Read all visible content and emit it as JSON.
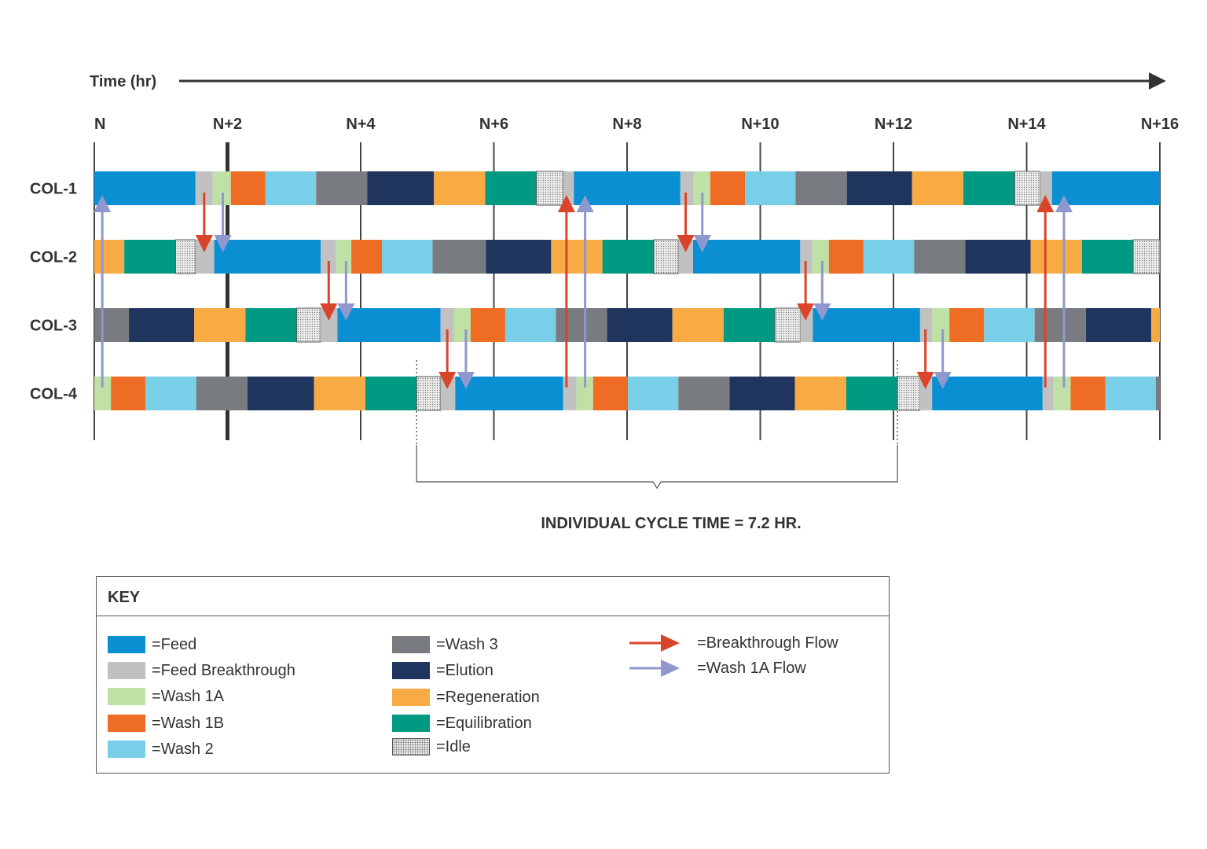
{
  "axis": {
    "title": "Time (hr)",
    "ticks": [
      "N",
      "N+2",
      "N+4",
      "N+6",
      "N+8",
      "N+10",
      "N+12",
      "N+14",
      "N+16"
    ]
  },
  "rows": [
    "COL-1",
    "COL-2",
    "COL-3",
    "COL-4"
  ],
  "phases": {
    "feed": {
      "color": "#0a8fd3"
    },
    "feed_breakthrough": {
      "color": "#c1c1c1"
    },
    "wash1a": {
      "color": "#bfe1a5"
    },
    "wash1b": {
      "color": "#ef6c24"
    },
    "wash2": {
      "color": "#79cfe8"
    },
    "wash3": {
      "color": "#787c80"
    },
    "elution": {
      "color": "#1f355d"
    },
    "regeneration": {
      "color": "#f8ab45"
    },
    "equilibration": {
      "color": "#009a82"
    },
    "idle": {
      "color": "#eeeeee"
    }
  },
  "schedule": [
    {
      "row": "COL-1",
      "segments": [
        [
          "feed",
          0,
          1.52
        ],
        [
          "feed_breakthrough",
          1.52,
          1.78
        ],
        [
          "wash1a",
          1.78,
          2.05
        ],
        [
          "wash1b",
          2.05,
          2.57
        ],
        [
          "wash2",
          2.57,
          3.33
        ],
        [
          "wash3",
          3.33,
          4.1
        ],
        [
          "elution",
          4.1,
          5.1
        ],
        [
          "regeneration",
          5.1,
          5.87
        ],
        [
          "equilibration",
          5.87,
          6.64
        ],
        [
          "idle",
          6.64,
          7.04
        ],
        [
          "feed_breakthrough",
          7.04,
          7.2
        ],
        [
          "feed",
          7.2,
          8.8
        ],
        [
          "feed_breakthrough",
          8.8,
          9.0
        ],
        [
          "wash1a",
          9.0,
          9.25
        ],
        [
          "wash1b",
          9.25,
          9.77
        ],
        [
          "wash2",
          9.77,
          10.53
        ],
        [
          "wash3",
          10.53,
          11.3
        ],
        [
          "elution",
          11.3,
          12.28
        ],
        [
          "regeneration",
          12.28,
          13.05
        ],
        [
          "equilibration",
          13.05,
          13.82
        ],
        [
          "idle",
          13.82,
          14.2
        ],
        [
          "feed_breakthrough",
          14.2,
          14.38
        ],
        [
          "feed",
          14.38,
          16.0
        ]
      ]
    },
    {
      "row": "COL-2",
      "segments": [
        [
          "regeneration",
          0,
          0.45
        ],
        [
          "equilibration",
          0.45,
          1.22
        ],
        [
          "idle",
          1.22,
          1.52
        ],
        [
          "feed_breakthrough",
          1.52,
          1.8
        ],
        [
          "feed",
          1.8,
          3.4
        ],
        [
          "feed_breakthrough",
          3.4,
          3.63
        ],
        [
          "wash1a",
          3.63,
          3.86
        ],
        [
          "wash1b",
          3.86,
          4.32
        ],
        [
          "wash2",
          4.32,
          5.08
        ],
        [
          "wash3",
          5.08,
          5.88
        ],
        [
          "elution",
          5.88,
          6.86
        ],
        [
          "regeneration",
          6.86,
          7.63
        ],
        [
          "equilibration",
          7.63,
          8.4
        ],
        [
          "idle",
          8.4,
          8.77
        ],
        [
          "feed_breakthrough",
          8.77,
          8.99
        ],
        [
          "feed",
          8.99,
          10.6
        ],
        [
          "feed_breakthrough",
          10.6,
          10.78
        ],
        [
          "wash1a",
          10.78,
          11.03
        ],
        [
          "wash1b",
          11.03,
          11.55
        ],
        [
          "wash2",
          11.55,
          12.31
        ],
        [
          "wash3",
          12.31,
          13.08
        ],
        [
          "elution",
          13.08,
          14.06
        ],
        [
          "regeneration",
          14.06,
          14.83
        ],
        [
          "equilibration",
          14.83,
          15.6
        ],
        [
          "idle",
          15.6,
          16.0
        ]
      ]
    },
    {
      "row": "COL-3",
      "segments": [
        [
          "wash3",
          0,
          0.52
        ],
        [
          "elution",
          0.52,
          1.5
        ],
        [
          "regeneration",
          1.5,
          2.27
        ],
        [
          "equilibration",
          2.27,
          3.04
        ],
        [
          "idle",
          3.04,
          3.4
        ],
        [
          "feed_breakthrough",
          3.4,
          3.65
        ],
        [
          "feed",
          3.65,
          5.2
        ],
        [
          "feed_breakthrough",
          5.2,
          5.4
        ],
        [
          "wash1a",
          5.4,
          5.65
        ],
        [
          "wash1b",
          5.65,
          6.17
        ],
        [
          "wash2",
          6.17,
          6.93
        ],
        [
          "wash3",
          6.93,
          7.7
        ],
        [
          "elution",
          7.7,
          8.68
        ],
        [
          "regeneration",
          8.68,
          9.45
        ],
        [
          "equilibration",
          9.45,
          10.22
        ],
        [
          "idle",
          10.22,
          10.6
        ],
        [
          "feed_breakthrough",
          10.6,
          10.79
        ],
        [
          "feed",
          10.79,
          12.4
        ],
        [
          "feed_breakthrough",
          12.4,
          12.58
        ],
        [
          "wash1a",
          12.58,
          12.84
        ],
        [
          "wash1b",
          12.84,
          13.36
        ],
        [
          "wash2",
          13.36,
          14.12
        ],
        [
          "wash3",
          14.12,
          14.89
        ],
        [
          "elution",
          14.89,
          15.87
        ],
        [
          "regeneration",
          15.87,
          16.0
        ]
      ]
    },
    {
      "row": "COL-4",
      "segments": [
        [
          "wash1a",
          0,
          0.25
        ],
        [
          "wash1b",
          0.25,
          0.77
        ],
        [
          "wash2",
          0.77,
          1.53
        ],
        [
          "wash3",
          1.53,
          2.3
        ],
        [
          "elution",
          2.3,
          3.3
        ],
        [
          "regeneration",
          3.3,
          4.07
        ],
        [
          "equilibration",
          4.07,
          4.84
        ],
        [
          "idle",
          4.84,
          5.2
        ],
        [
          "feed_breakthrough",
          5.2,
          5.42
        ],
        [
          "feed",
          5.42,
          7.04
        ],
        [
          "feed_breakthrough",
          7.04,
          7.24
        ],
        [
          "wash1a",
          7.24,
          7.49
        ],
        [
          "wash1b",
          7.49,
          8.01
        ],
        [
          "wash2",
          8.01,
          8.77
        ],
        [
          "wash3",
          8.77,
          9.54
        ],
        [
          "elution",
          9.54,
          10.52
        ],
        [
          "regeneration",
          10.52,
          11.29
        ],
        [
          "equilibration",
          11.29,
          12.06
        ],
        [
          "idle",
          12.06,
          12.4
        ],
        [
          "feed_breakthrough",
          12.4,
          12.58
        ],
        [
          "feed",
          12.58,
          14.24
        ],
        [
          "feed_breakthrough",
          14.24,
          14.4
        ],
        [
          "wash1a",
          14.4,
          14.66
        ],
        [
          "wash1b",
          14.66,
          15.18
        ],
        [
          "wash2",
          15.18,
          15.94
        ],
        [
          "wash3",
          15.94,
          16.0
        ]
      ]
    }
  ],
  "flows": [
    {
      "type": "wash1a",
      "from": "COL-4",
      "to": "COL-1",
      "time": 0.12
    },
    {
      "type": "breakthrough",
      "from": "COL-1",
      "to": "COL-2",
      "time": 1.65
    },
    {
      "type": "wash1a",
      "from": "COL-1",
      "to": "COL-2",
      "time": 1.93
    },
    {
      "type": "breakthrough",
      "from": "COL-2",
      "to": "COL-3",
      "time": 3.52
    },
    {
      "type": "wash1a",
      "from": "COL-2",
      "to": "COL-3",
      "time": 3.78
    },
    {
      "type": "breakthrough",
      "from": "COL-3",
      "to": "COL-4",
      "time": 5.3
    },
    {
      "type": "wash1a",
      "from": "COL-3",
      "to": "COL-4",
      "time": 5.58
    },
    {
      "type": "breakthrough",
      "from": "COL-4",
      "to": "COL-1",
      "time": 7.09
    },
    {
      "type": "wash1a",
      "from": "COL-4",
      "to": "COL-1",
      "time": 7.37
    },
    {
      "type": "breakthrough",
      "from": "COL-1",
      "to": "COL-2",
      "time": 8.88
    },
    {
      "type": "wash1a",
      "from": "COL-1",
      "to": "COL-2",
      "time": 9.13
    },
    {
      "type": "breakthrough",
      "from": "COL-2",
      "to": "COL-3",
      "time": 10.68
    },
    {
      "type": "wash1a",
      "from": "COL-2",
      "to": "COL-3",
      "time": 10.93
    },
    {
      "type": "breakthrough",
      "from": "COL-3",
      "to": "COL-4",
      "time": 12.48
    },
    {
      "type": "wash1a",
      "from": "COL-3",
      "to": "COL-4",
      "time": 12.74
    },
    {
      "type": "breakthrough",
      "from": "COL-4",
      "to": "COL-1",
      "time": 14.28
    },
    {
      "type": "wash1a",
      "from": "COL-4",
      "to": "COL-1",
      "time": 14.56
    }
  ],
  "flow_colors": {
    "breakthrough": "#d9442b",
    "wash1a": "#8f97cf"
  },
  "cycle": {
    "start": 4.84,
    "end": 12.06,
    "label": "INDIVIDUAL CYCLE TIME = 7.2 HR."
  },
  "key": {
    "title": "KEY",
    "items": [
      {
        "label": "=Feed"
      },
      {
        "label": "=Feed Breakthrough"
      },
      {
        "label": "=Wash 1A"
      },
      {
        "label": "=Wash 1B"
      },
      {
        "label": "=Wash 2"
      },
      {
        "label": "=Wash 3"
      },
      {
        "label": "=Elution"
      },
      {
        "label": "=Regeneration"
      },
      {
        "label": "=Equilibration"
      },
      {
        "label": "=Idle"
      }
    ],
    "flows": [
      {
        "label": "=Breakthrough Flow"
      },
      {
        "label": "=Wash 1A Flow"
      }
    ]
  }
}
